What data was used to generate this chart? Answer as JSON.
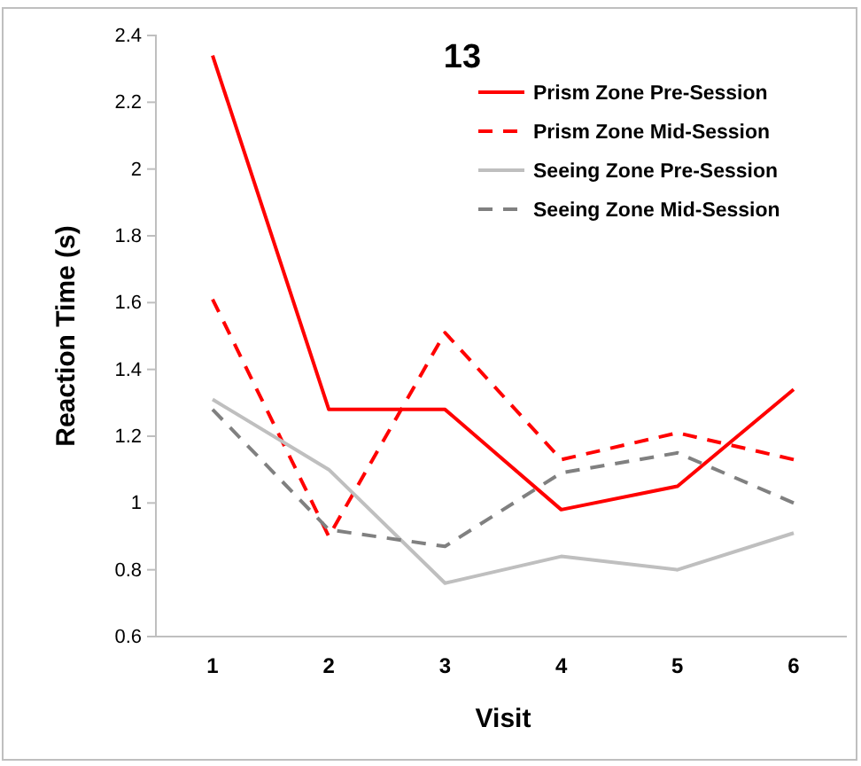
{
  "chart_data": {
    "type": "line",
    "title": "13",
    "xlabel": "Visit",
    "ylabel": "Reaction Time (s)",
    "categories": [
      "1",
      "2",
      "3",
      "4",
      "5",
      "6"
    ],
    "series": [
      {
        "name": "Prism Zone Pre-Session",
        "color": "#ff0000",
        "line_style": "solid",
        "values": [
          2.34,
          1.28,
          1.28,
          0.98,
          1.05,
          1.34
        ]
      },
      {
        "name": "Prism Zone Mid-Session",
        "color": "#ff0000",
        "line_style": "dashed",
        "values": [
          1.61,
          0.9,
          1.51,
          1.13,
          1.21,
          1.13
        ]
      },
      {
        "name": "Seeing Zone Pre-Session",
        "color": "#bfbfbf",
        "line_style": "solid",
        "values": [
          1.31,
          1.1,
          0.76,
          0.84,
          0.8,
          0.91
        ]
      },
      {
        "name": "Seeing Zone Mid-Session",
        "color": "#808080",
        "line_style": "dashed",
        "values": [
          1.28,
          0.92,
          0.87,
          1.09,
          1.15,
          1.0
        ]
      }
    ],
    "ylim": [
      0.6,
      2.4
    ],
    "yticks": [
      0.6,
      0.8,
      1,
      1.2,
      1.4,
      1.6,
      1.8,
      2,
      2.2,
      2.4
    ],
    "legend": "top right",
    "grid": false,
    "marker": "none"
  }
}
